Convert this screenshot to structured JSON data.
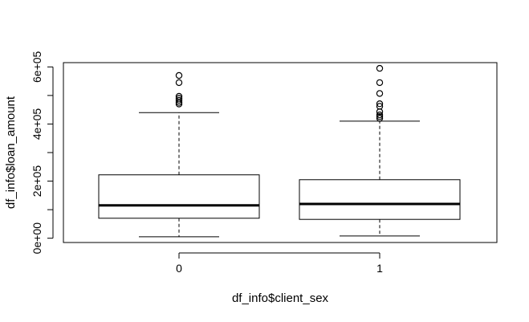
{
  "chart_data": {
    "type": "boxplot",
    "xlabel": "df_info$client_sex",
    "ylabel": "df_info$loan_amount",
    "ylim": [
      -15000,
      615000
    ],
    "y_ticks": [
      0,
      200000,
      400000,
      600000
    ],
    "y_minor_ticks": [
      100000,
      300000,
      500000
    ],
    "y_tick_labels": [
      "0e+00",
      "2e+05",
      "4e+05",
      "6e+05"
    ],
    "categories": [
      "0",
      "1"
    ],
    "boxes": [
      {
        "name": "0",
        "whisker_low": 5000,
        "q1": 70000,
        "median": 115000,
        "q3": 222000,
        "whisker_high": 440000,
        "outliers": [
          470000,
          476000,
          483000,
          490000,
          497000,
          545000,
          570000
        ]
      },
      {
        "name": "1",
        "whisker_low": 8000,
        "q1": 66000,
        "median": 120000,
        "q3": 205000,
        "whisker_high": 410000,
        "outliers": [
          420000,
          426000,
          432000,
          443000,
          462000,
          471000,
          507000,
          545000,
          595000
        ]
      }
    ],
    "grid": false,
    "legend": "none",
    "box_color": "#000000",
    "background": "#ffffff"
  }
}
